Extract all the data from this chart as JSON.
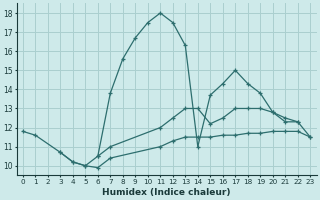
{
  "xlabel": "Humidex (Indice chaleur)",
  "background_color": "#ceeaea",
  "grid_color": "#aacfcf",
  "line_color": "#2d6e6e",
  "xlim": [
    -0.5,
    23.5
  ],
  "ylim": [
    9.5,
    18.5
  ],
  "xticks": [
    0,
    1,
    2,
    3,
    4,
    5,
    6,
    7,
    8,
    9,
    10,
    11,
    12,
    13,
    14,
    15,
    16,
    17,
    18,
    19,
    20,
    21,
    22,
    23
  ],
  "yticks": [
    10,
    11,
    12,
    13,
    14,
    15,
    16,
    17,
    18
  ],
  "series": [
    {
      "x": [
        0,
        1,
        3,
        4,
        5,
        6,
        7,
        11,
        12,
        13,
        14,
        15,
        16,
        17,
        18,
        19,
        20,
        21,
        22,
        23
      ],
      "y": [
        11.8,
        11.6,
        10.7,
        10.2,
        10.0,
        9.9,
        10.4,
        11.0,
        11.3,
        11.5,
        11.5,
        11.5,
        11.6,
        11.6,
        11.7,
        11.7,
        11.8,
        11.8,
        11.8,
        11.5
      ]
    },
    {
      "x": [
        3,
        4,
        5,
        6,
        7,
        11,
        12,
        13,
        14,
        15,
        16,
        17,
        18,
        19,
        20,
        21,
        22,
        23
      ],
      "y": [
        10.7,
        10.2,
        10.0,
        10.5,
        11.0,
        12.0,
        12.5,
        13.0,
        13.0,
        12.2,
        12.5,
        13.0,
        13.0,
        13.0,
        12.8,
        12.3,
        12.3,
        11.5
      ]
    },
    {
      "x": [
        6,
        7,
        8,
        9,
        10,
        11,
        12,
        13,
        14,
        15,
        16,
        17,
        18,
        19,
        20,
        21,
        22
      ],
      "y": [
        10.5,
        13.8,
        15.6,
        16.7,
        17.5,
        18.0,
        17.5,
        16.3,
        11.0,
        13.7,
        14.3,
        15.0,
        14.3,
        13.8,
        12.8,
        12.5,
        12.3
      ]
    }
  ]
}
